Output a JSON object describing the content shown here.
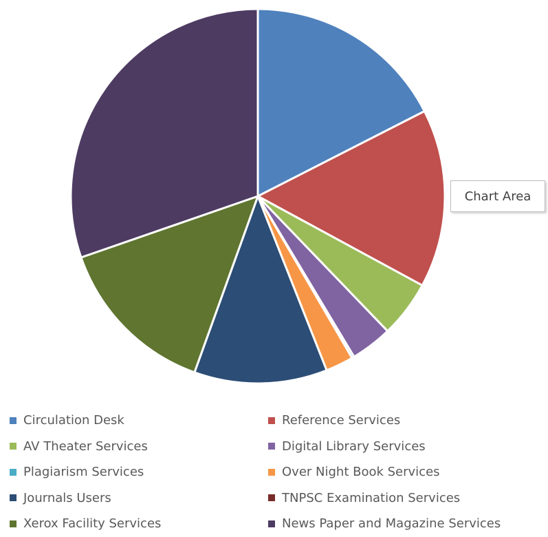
{
  "tooltip": {
    "label": "Chart Area"
  },
  "chart_data": {
    "type": "pie",
    "title": "",
    "legend_position": "bottom",
    "slices": [
      {
        "label": "Circulation Desk",
        "value": 17.5,
        "color": "#4f81bd"
      },
      {
        "label": "Reference Services",
        "value": 15.4,
        "color": "#c0504d"
      },
      {
        "label": "AV Theater Services",
        "value": 4.9,
        "color": "#9bbb59"
      },
      {
        "label": "Digital Library Services",
        "value": 3.6,
        "color": "#8064a2"
      },
      {
        "label": "Plagiarism Services",
        "value": 0.2,
        "color": "#4bacc6"
      },
      {
        "label": "Over Night Book Services",
        "value": 2.4,
        "color": "#f79646"
      },
      {
        "label": "Journals Users",
        "value": 11.5,
        "color": "#2c4d75"
      },
      {
        "label": "TNPSC Examination Services",
        "value": 0.0,
        "color": "#772c2a"
      },
      {
        "label": "Xerox Facility Services",
        "value": 14.2,
        "color": "#5f7530"
      },
      {
        "label": "News Paper and Magazine Services",
        "value": 30.3,
        "color": "#4d3b62"
      }
    ]
  }
}
